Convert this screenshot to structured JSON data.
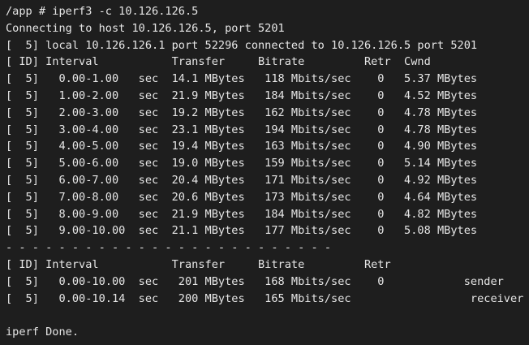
{
  "terminal": {
    "colors": {
      "background": "#1e1e1e",
      "foreground": "#e6e6e6"
    },
    "prompt": "/app #",
    "command": "iperf3 -c 10.126.126.5",
    "lines": [
      "/app # iperf3 -c 10.126.126.5",
      "Connecting to host 10.126.126.5, port 5201",
      "[  5] local 10.126.126.1 port 52296 connected to 10.126.126.5 port 5201",
      "[ ID] Interval           Transfer     Bitrate         Retr  Cwnd",
      "[  5]   0.00-1.00   sec  14.1 MBytes   118 Mbits/sec    0   5.37 MBytes",
      "[  5]   1.00-2.00   sec  21.9 MBytes   184 Mbits/sec    0   4.52 MBytes",
      "[  5]   2.00-3.00   sec  19.2 MBytes   162 Mbits/sec    0   4.78 MBytes",
      "[  5]   3.00-4.00   sec  23.1 MBytes   194 Mbits/sec    0   4.78 MBytes",
      "[  5]   4.00-5.00   sec  19.4 MBytes   163 Mbits/sec    0   4.90 MBytes",
      "[  5]   5.00-6.00   sec  19.0 MBytes   159 Mbits/sec    0   5.14 MBytes",
      "[  5]   6.00-7.00   sec  20.4 MBytes   171 Mbits/sec    0   4.92 MBytes",
      "[  5]   7.00-8.00   sec  20.6 MBytes   173 Mbits/sec    0   4.64 MBytes",
      "[  5]   8.00-9.00   sec  21.9 MBytes   184 Mbits/sec    0   4.82 MBytes",
      "[  5]   9.00-10.00  sec  21.1 MBytes   177 Mbits/sec    0   5.08 MBytes",
      "- - - - - - - - - - - - - - - - - - - - - - - - -",
      "[ ID] Interval           Transfer     Bitrate         Retr",
      "[  5]   0.00-10.00  sec   201 MBytes   168 Mbits/sec    0            sender",
      "[  5]   0.00-10.14  sec   200 MBytes   165 Mbits/sec                  receiver",
      "",
      "iperf Done."
    ],
    "connection": {
      "local_ip": "10.126.126.1",
      "local_port": "52296",
      "remote_ip": "10.126.126.5",
      "remote_port": "5201"
    },
    "table": {
      "headers": [
        "ID",
        "Interval",
        "Transfer",
        "Bitrate",
        "Retr",
        "Cwnd"
      ],
      "interval_rows": [
        {
          "id": 5,
          "interval": "0.00-1.00",
          "unit": "sec",
          "transfer": "14.1 MBytes",
          "bitrate": "118 Mbits/sec",
          "retr": 0,
          "cwnd": "5.37 MBytes"
        },
        {
          "id": 5,
          "interval": "1.00-2.00",
          "unit": "sec",
          "transfer": "21.9 MBytes",
          "bitrate": "184 Mbits/sec",
          "retr": 0,
          "cwnd": "4.52 MBytes"
        },
        {
          "id": 5,
          "interval": "2.00-3.00",
          "unit": "sec",
          "transfer": "19.2 MBytes",
          "bitrate": "162 Mbits/sec",
          "retr": 0,
          "cwnd": "4.78 MBytes"
        },
        {
          "id": 5,
          "interval": "3.00-4.00",
          "unit": "sec",
          "transfer": "23.1 MBytes",
          "bitrate": "194 Mbits/sec",
          "retr": 0,
          "cwnd": "4.78 MBytes"
        },
        {
          "id": 5,
          "interval": "4.00-5.00",
          "unit": "sec",
          "transfer": "19.4 MBytes",
          "bitrate": "163 Mbits/sec",
          "retr": 0,
          "cwnd": "4.90 MBytes"
        },
        {
          "id": 5,
          "interval": "5.00-6.00",
          "unit": "sec",
          "transfer": "19.0 MBytes",
          "bitrate": "159 Mbits/sec",
          "retr": 0,
          "cwnd": "5.14 MBytes"
        },
        {
          "id": 5,
          "interval": "6.00-7.00",
          "unit": "sec",
          "transfer": "20.4 MBytes",
          "bitrate": "171 Mbits/sec",
          "retr": 0,
          "cwnd": "4.92 MBytes"
        },
        {
          "id": 5,
          "interval": "7.00-8.00",
          "unit": "sec",
          "transfer": "20.6 MBytes",
          "bitrate": "173 Mbits/sec",
          "retr": 0,
          "cwnd": "4.64 MBytes"
        },
        {
          "id": 5,
          "interval": "8.00-9.00",
          "unit": "sec",
          "transfer": "21.9 MBytes",
          "bitrate": "184 Mbits/sec",
          "retr": 0,
          "cwnd": "4.82 MBytes"
        },
        {
          "id": 5,
          "interval": "9.00-10.00",
          "unit": "sec",
          "transfer": "21.1 MBytes",
          "bitrate": "177 Mbits/sec",
          "retr": 0,
          "cwnd": "5.08 MBytes"
        }
      ],
      "summary_headers": [
        "ID",
        "Interval",
        "Transfer",
        "Bitrate",
        "Retr"
      ],
      "summary_rows": [
        {
          "id": 5,
          "interval": "0.00-10.00",
          "unit": "sec",
          "transfer": "201 MBytes",
          "bitrate": "168 Mbits/sec",
          "retr": 0,
          "role": "sender"
        },
        {
          "id": 5,
          "interval": "0.00-10.14",
          "unit": "sec",
          "transfer": "200 MBytes",
          "bitrate": "165 Mbits/sec",
          "retr": "",
          "role": "receiver"
        }
      ]
    },
    "done_message": "iperf Done."
  }
}
